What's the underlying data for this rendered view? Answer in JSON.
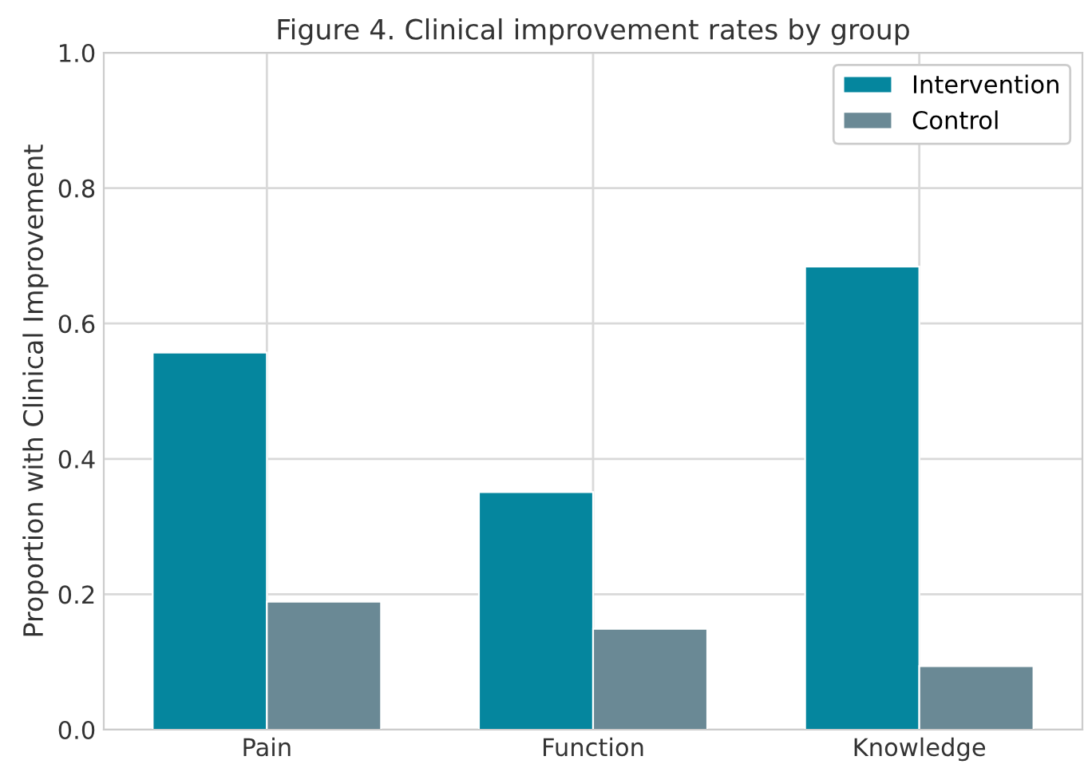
{
  "chart_data": {
    "type": "bar",
    "title": "Figure 4. Clinical improvement rates by group",
    "ylabel": "Proportion with Clinical Improvement",
    "categories": [
      "Pain",
      "Function",
      "Knowledge"
    ],
    "series": [
      {
        "name": "Intervention",
        "color": "#05869e",
        "values": [
          0.557,
          0.351,
          0.684
        ]
      },
      {
        "name": "Control",
        "color": "#6a8995",
        "values": [
          0.189,
          0.149,
          0.094
        ]
      }
    ],
    "ylim": [
      0,
      1
    ],
    "yticks": [
      {
        "value": 0,
        "label": "0.0"
      },
      {
        "value": 0.2,
        "label": "0.2"
      },
      {
        "value": 0.4,
        "label": "0.4"
      },
      {
        "value": 0.6,
        "label": "0.6"
      },
      {
        "value": 0.8,
        "label": "0.8"
      },
      {
        "value": 1,
        "label": "1.0"
      }
    ],
    "grid": true,
    "legend": "top right"
  }
}
